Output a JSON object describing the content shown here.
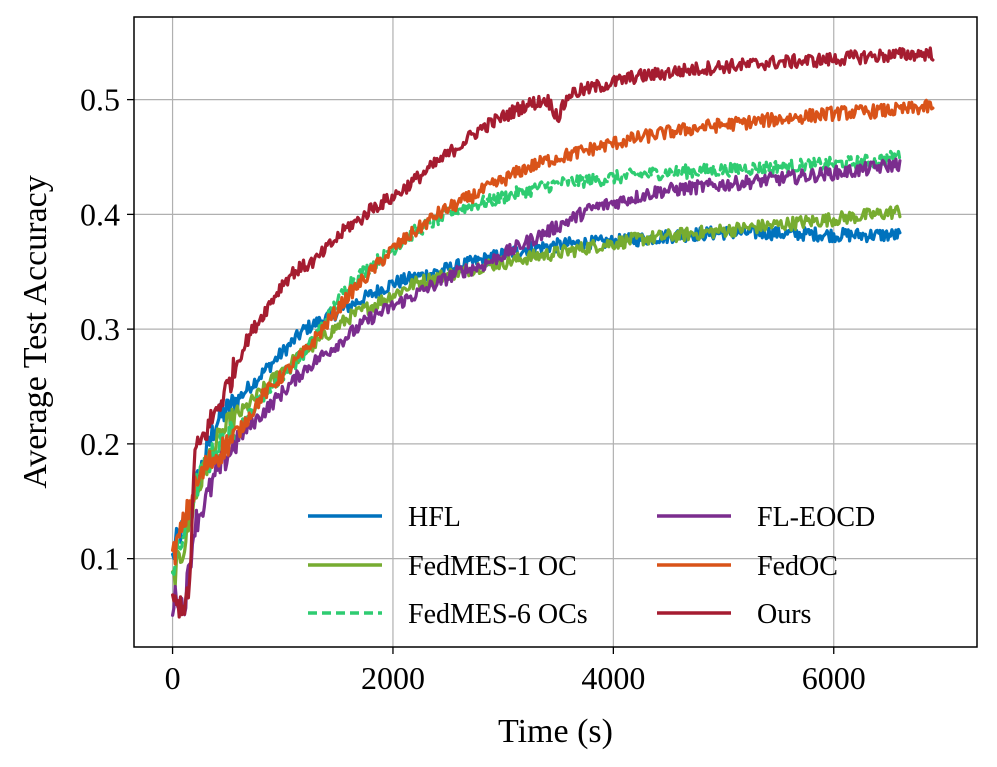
{
  "chart_data": {
    "type": "line",
    "title": "",
    "xlabel": "Time (s)",
    "ylabel": "Average Test Accuracy",
    "xlim": [
      -350,
      7300
    ],
    "ylim": [
      0.023,
      0.572
    ],
    "xticks": [
      0,
      2000,
      4000,
      6000
    ],
    "xtick_labels": [
      "0",
      "2000",
      "4000",
      "6000"
    ],
    "yticks": [
      0.1,
      0.2,
      0.3,
      0.4,
      0.5
    ],
    "ytick_labels": [
      "0.1",
      "0.2",
      "0.3",
      "0.4",
      "0.5"
    ],
    "grid": true,
    "legend": {
      "placement": "bottom-right",
      "columns": 2
    },
    "series": [
      {
        "name": "HFL",
        "color": "#0072bd",
        "dash": "solid",
        "x": [
          0,
          50,
          100,
          150,
          200,
          300,
          400,
          500,
          600,
          700,
          800,
          900,
          1000,
          1100,
          1200,
          1300,
          1400,
          1500,
          1600,
          1700,
          1800,
          1900,
          2000,
          2200,
          2400,
          2600,
          2800,
          3000,
          3200,
          3400,
          3600,
          3800,
          4000,
          4200,
          4400,
          4600,
          4800,
          5000,
          5200,
          5400,
          5600,
          5800,
          6000,
          6200,
          6400,
          6600
        ],
        "y": [
          0.1,
          0.12,
          0.125,
          0.14,
          0.16,
          0.19,
          0.22,
          0.23,
          0.24,
          0.25,
          0.26,
          0.27,
          0.28,
          0.29,
          0.3,
          0.305,
          0.31,
          0.315,
          0.32,
          0.325,
          0.33,
          0.335,
          0.34,
          0.345,
          0.35,
          0.355,
          0.36,
          0.365,
          0.37,
          0.372,
          0.374,
          0.375,
          0.376,
          0.378,
          0.38,
          0.382,
          0.383,
          0.384,
          0.384,
          0.384,
          0.383,
          0.383,
          0.382,
          0.382,
          0.382,
          0.382
        ]
      },
      {
        "name": "FedMES-1 OC",
        "color": "#77ac30",
        "dash": "solid",
        "x": [
          0,
          100,
          200,
          300,
          400,
          500,
          600,
          700,
          800,
          900,
          1000,
          1200,
          1400,
          1600,
          1800,
          2000,
          2200,
          2400,
          2600,
          2800,
          3000,
          3200,
          3400,
          3600,
          3800,
          4000,
          4200,
          4400,
          4600,
          4800,
          5000,
          5200,
          5400,
          5600,
          5800,
          6000,
          6200,
          6400,
          6600
        ],
        "y": [
          0.08,
          0.11,
          0.15,
          0.18,
          0.2,
          0.215,
          0.225,
          0.235,
          0.245,
          0.255,
          0.265,
          0.28,
          0.295,
          0.31,
          0.32,
          0.33,
          0.34,
          0.345,
          0.35,
          0.355,
          0.358,
          0.362,
          0.365,
          0.368,
          0.372,
          0.375,
          0.378,
          0.38,
          0.382,
          0.384,
          0.386,
          0.388,
          0.39,
          0.392,
          0.394,
          0.396,
          0.398,
          0.4,
          0.403
        ]
      },
      {
        "name": "FedMES-6 OCs",
        "color": "#2ecc71",
        "dash": "dashed",
        "x": [
          0,
          100,
          200,
          300,
          400,
          500,
          600,
          700,
          800,
          900,
          1000,
          1200,
          1400,
          1600,
          1800,
          2000,
          2200,
          2400,
          2600,
          2800,
          3000,
          3200,
          3400,
          3600,
          3800,
          4000,
          4200,
          4400,
          4600,
          4800,
          5000,
          5200,
          5400,
          5600,
          5800,
          6000,
          6200,
          6400,
          6600
        ],
        "y": [
          0.09,
          0.12,
          0.16,
          0.18,
          0.195,
          0.205,
          0.215,
          0.225,
          0.24,
          0.25,
          0.26,
          0.28,
          0.31,
          0.34,
          0.355,
          0.37,
          0.385,
          0.395,
          0.405,
          0.41,
          0.415,
          0.42,
          0.425,
          0.428,
          0.43,
          0.432,
          0.434,
          0.436,
          0.437,
          0.438,
          0.439,
          0.44,
          0.441,
          0.442,
          0.443,
          0.444,
          0.445,
          0.447,
          0.451
        ]
      },
      {
        "name": "FL-EOCD",
        "color": "#7b2d8e",
        "dash": "solid",
        "x": [
          0,
          50,
          100,
          150,
          200,
          300,
          400,
          500,
          600,
          700,
          800,
          900,
          1000,
          1200,
          1400,
          1600,
          1800,
          2000,
          2200,
          2400,
          2600,
          2800,
          3000,
          3200,
          3400,
          3600,
          3800,
          4000,
          4200,
          4400,
          4600,
          4800,
          5000,
          5200,
          5400,
          5600,
          5800,
          6000,
          6200,
          6400,
          6600
        ],
        "y": [
          0.06,
          0.07,
          0.055,
          0.09,
          0.13,
          0.15,
          0.175,
          0.19,
          0.205,
          0.215,
          0.225,
          0.235,
          0.245,
          0.265,
          0.28,
          0.295,
          0.31,
          0.32,
          0.33,
          0.34,
          0.35,
          0.355,
          0.365,
          0.375,
          0.385,
          0.395,
          0.405,
          0.41,
          0.415,
          0.42,
          0.422,
          0.424,
          0.426,
          0.428,
          0.43,
          0.432,
          0.434,
          0.436,
          0.438,
          0.441,
          0.444
        ]
      },
      {
        "name": "FedOC",
        "color": "#d95319",
        "dash": "solid",
        "x": [
          0,
          100,
          200,
          300,
          400,
          500,
          600,
          700,
          800,
          900,
          1000,
          1200,
          1400,
          1600,
          1800,
          2000,
          2200,
          2400,
          2600,
          2800,
          3000,
          3200,
          3400,
          3600,
          3800,
          4000,
          4200,
          4400,
          4600,
          4800,
          5000,
          5200,
          5400,
          5600,
          5800,
          6000,
          6200,
          6400,
          6600,
          6800,
          6900
        ],
        "y": [
          0.1,
          0.13,
          0.16,
          0.18,
          0.19,
          0.2,
          0.21,
          0.225,
          0.24,
          0.25,
          0.26,
          0.28,
          0.305,
          0.33,
          0.35,
          0.37,
          0.385,
          0.4,
          0.41,
          0.42,
          0.43,
          0.44,
          0.447,
          0.452,
          0.457,
          0.462,
          0.466,
          0.47,
          0.473,
          0.476,
          0.478,
          0.48,
          0.482,
          0.484,
          0.486,
          0.488,
          0.489,
          0.49,
          0.491,
          0.493,
          0.494
        ]
      },
      {
        "name": "Ours",
        "color": "#a51c30",
        "dash": "solid",
        "x": [
          0,
          100,
          150,
          200,
          300,
          400,
          500,
          600,
          700,
          800,
          900,
          1000,
          1100,
          1200,
          1300,
          1400,
          1500,
          1600,
          1700,
          1800,
          1900,
          2000,
          2200,
          2400,
          2600,
          2800,
          3000,
          3200,
          3400,
          3500,
          3600,
          3800,
          4000,
          4200,
          4400,
          4600,
          4800,
          5000,
          5200,
          5400,
          5600,
          5800,
          6000,
          6200,
          6400,
          6600,
          6800,
          6900
        ],
        "y": [
          0.06,
          0.06,
          0.065,
          0.19,
          0.21,
          0.23,
          0.25,
          0.275,
          0.295,
          0.31,
          0.325,
          0.34,
          0.35,
          0.355,
          0.36,
          0.37,
          0.38,
          0.39,
          0.395,
          0.405,
          0.41,
          0.415,
          0.43,
          0.445,
          0.46,
          0.475,
          0.485,
          0.495,
          0.5,
          0.485,
          0.505,
          0.51,
          0.515,
          0.52,
          0.522,
          0.525,
          0.527,
          0.529,
          0.53,
          0.532,
          0.533,
          0.534,
          0.535,
          0.537,
          0.538,
          0.539,
          0.54,
          0.54
        ]
      }
    ]
  }
}
